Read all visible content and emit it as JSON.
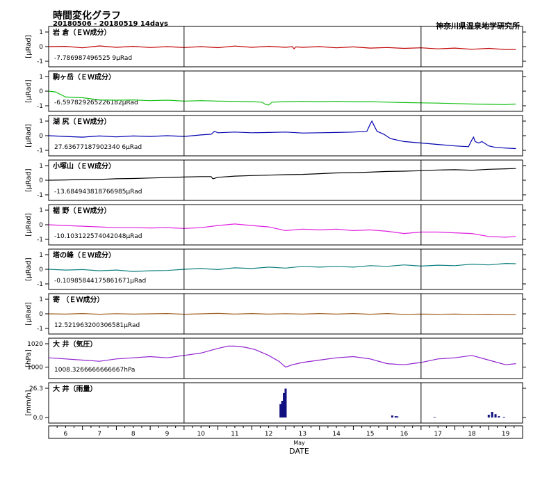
{
  "header": {
    "title": "時間変化グラフ",
    "subtitle": "20180506 - 20180519 14days",
    "organization": "神奈川県温泉地学研究所"
  },
  "chart_data": {
    "type": "line",
    "xlabel": "DATE",
    "month_label": "May",
    "x_range": [
      5.5,
      19.5
    ],
    "x_ticks": [
      "6",
      "7",
      "8",
      "9",
      "10",
      "11",
      "12",
      "13",
      "14",
      "15",
      "16",
      "17",
      "18",
      "19"
    ],
    "day_markers": [
      9.5,
      16.5
    ],
    "panels": [
      {
        "name": "岩 倉（ＥＷ成分）",
        "ylabel": "[μRad]",
        "ylim": [
          -1,
          1
        ],
        "yticks": [
          "1",
          "0",
          "-1"
        ],
        "offset_label": "-7.786987496525 9μRad",
        "color": "#c00000",
        "x": [
          5.5,
          6,
          6.5,
          7,
          7.5,
          8,
          8.5,
          9,
          9.5,
          10,
          10.5,
          11,
          11.5,
          12,
          12.5,
          12.7,
          12.75,
          12.8,
          13,
          13.5,
          14,
          14.5,
          15,
          15.5,
          16,
          16.5,
          17,
          17.5,
          18,
          18.5,
          19,
          19.3
        ],
        "values": [
          0,
          0.02,
          -0.08,
          0.05,
          -0.05,
          0.02,
          -0.06,
          0.0,
          -0.06,
          0.0,
          -0.07,
          0.04,
          -0.05,
          0.02,
          -0.05,
          0.0,
          -0.15,
          -0.02,
          -0.05,
          0.0,
          -0.08,
          -0.02,
          -0.1,
          -0.06,
          -0.12,
          -0.08,
          -0.15,
          -0.1,
          -0.18,
          -0.12,
          -0.2,
          -0.2
        ]
      },
      {
        "name": "駒ヶ岳（ＥＷ成分）",
        "ylabel": "[μRad]",
        "ylim": [
          -1,
          1
        ],
        "yticks": [
          "1",
          "0",
          "-1"
        ],
        "offset_label": "-6.597829265226182μRad",
        "color": "#10c010",
        "x": [
          5.5,
          5.7,
          6,
          6.5,
          7,
          7.5,
          8,
          8.5,
          9,
          9.5,
          10,
          10.5,
          11,
          11.5,
          11.8,
          11.9,
          12.0,
          12.1,
          12.5,
          13,
          13.5,
          14,
          14.5,
          15,
          15.5,
          16,
          16.5,
          17,
          17.5,
          18,
          18.5,
          19,
          19.3
        ],
        "values": [
          0,
          -0.05,
          -0.4,
          -0.45,
          -0.6,
          -0.62,
          -0.6,
          -0.65,
          -0.62,
          -0.68,
          -0.65,
          -0.68,
          -0.7,
          -0.72,
          -0.75,
          -0.9,
          -0.95,
          -0.75,
          -0.72,
          -0.7,
          -0.72,
          -0.7,
          -0.72,
          -0.72,
          -0.75,
          -0.78,
          -0.8,
          -0.82,
          -0.85,
          -0.88,
          -0.9,
          -0.92,
          -0.88
        ]
      },
      {
        "name": "湖 尻（ＥＷ成分）",
        "ylabel": "[μRad]",
        "ylim": [
          -1,
          1
        ],
        "yticks": [
          "1",
          "0",
          "-1"
        ],
        "offset_label": "27.63677187902340 6μRad",
        "color": "#0000b0",
        "x": [
          5.5,
          6,
          6.5,
          7,
          7.5,
          8,
          8.5,
          9,
          9.5,
          10,
          10.3,
          10.4,
          10.5,
          11,
          11.5,
          12,
          12.5,
          13,
          13.5,
          14,
          14.5,
          14.9,
          15.0,
          15.05,
          15.1,
          15.2,
          15.4,
          15.6,
          16,
          16.5,
          17,
          17.5,
          17.9,
          18.0,
          18.05,
          18.1,
          18.2,
          18.3,
          18.5,
          18.7,
          19,
          19.3
        ],
        "values": [
          0,
          -0.05,
          -0.1,
          -0.02,
          -0.08,
          -0.02,
          -0.05,
          0,
          -0.05,
          0.05,
          0.1,
          0.3,
          0.2,
          0.25,
          0.2,
          0.22,
          0.25,
          0.18,
          0.2,
          0.22,
          0.25,
          0.3,
          0.8,
          1.0,
          0.75,
          0.3,
          0.1,
          -0.2,
          -0.4,
          -0.5,
          -0.6,
          -0.7,
          -0.75,
          -0.3,
          -0.1,
          -0.4,
          -0.5,
          -0.4,
          -0.7,
          -0.8,
          -0.85,
          -0.88
        ]
      },
      {
        "name": "小塚山（ＥＷ成分）",
        "ylabel": "[μRad]",
        "ylim": [
          -1,
          1
        ],
        "yticks": [
          "1",
          "0",
          "-1"
        ],
        "offset_label": "-13.684943818766985μRad",
        "color": "#000000",
        "x": [
          5.5,
          6,
          6.5,
          7,
          7.5,
          8,
          8.5,
          9,
          9.5,
          10,
          10.3,
          10.35,
          10.5,
          11,
          11.5,
          12,
          12.5,
          13,
          13.5,
          14,
          14.5,
          15,
          15.5,
          16,
          16.5,
          17,
          17.5,
          18,
          18.5,
          19,
          19.3
        ],
        "values": [
          0,
          0.02,
          0.05,
          0.05,
          0.1,
          0.12,
          0.15,
          0.18,
          0.22,
          0.25,
          0.25,
          0.1,
          0.2,
          0.28,
          0.32,
          0.35,
          0.38,
          0.4,
          0.45,
          0.5,
          0.52,
          0.55,
          0.6,
          0.62,
          0.65,
          0.7,
          0.72,
          0.68,
          0.75,
          0.78,
          0.8
        ]
      },
      {
        "name": "裾 野（ＥＷ成分）",
        "ylabel": "[μRad]",
        "ylim": [
          -1,
          1
        ],
        "yticks": [
          "1",
          "0",
          "-1"
        ],
        "offset_label": "-10.103122574042048μRad",
        "color": "#e020e0",
        "x": [
          5.5,
          6,
          6.5,
          7,
          7.5,
          8,
          8.5,
          9,
          9.5,
          10,
          10.5,
          11,
          11.5,
          12,
          12.5,
          13,
          13.5,
          14,
          14.5,
          15,
          15.5,
          16,
          16.5,
          17,
          17.5,
          18,
          18.5,
          19,
          19.3
        ],
        "values": [
          0,
          -0.05,
          -0.1,
          -0.15,
          -0.2,
          -0.2,
          -0.22,
          -0.2,
          -0.25,
          -0.2,
          -0.05,
          0.05,
          -0.05,
          -0.15,
          -0.4,
          -0.3,
          -0.35,
          -0.3,
          -0.4,
          -0.35,
          -0.45,
          -0.6,
          -0.5,
          -0.5,
          -0.55,
          -0.6,
          -0.8,
          -0.85,
          -0.8
        ]
      },
      {
        "name": "塔の峰（ＥＷ成分）",
        "ylabel": "[μRad]",
        "ylim": [
          -1,
          1
        ],
        "yticks": [
          "1",
          "0",
          "-1"
        ],
        "offset_label": "-0.10985844175861671μRad",
        "color": "#108080",
        "x": [
          5.5,
          6,
          6.5,
          7,
          7.5,
          8,
          8.5,
          9,
          9.5,
          10,
          10.5,
          11,
          11.5,
          12,
          12.5,
          13,
          13.5,
          14,
          14.5,
          15,
          15.5,
          16,
          16.5,
          17,
          17.5,
          18,
          18.5,
          19,
          19.3
        ],
        "values": [
          0,
          -0.05,
          -0.02,
          -0.1,
          -0.05,
          -0.15,
          -0.1,
          -0.08,
          0,
          0.05,
          -0.02,
          0.1,
          0.05,
          0.15,
          0.08,
          0.2,
          0.15,
          0.2,
          0.15,
          0.25,
          0.2,
          0.3,
          0.22,
          0.28,
          0.25,
          0.35,
          0.3,
          0.4,
          0.38
        ]
      },
      {
        "name": "寄 （ＥＷ成分）",
        "ylabel": "[μRad]",
        "ylim": [
          -1,
          1
        ],
        "yticks": [
          "1",
          "0",
          "-1"
        ],
        "offset_label": "12.521963200306581μRad",
        "color": "#a06020",
        "x": [
          5.5,
          6,
          6.5,
          7,
          7.5,
          8,
          8.5,
          9,
          9.5,
          10,
          10.5,
          11,
          11.5,
          12,
          12.5,
          13,
          13.5,
          14,
          14.5,
          15,
          15.5,
          16,
          16.5,
          17,
          17.5,
          18,
          18.5,
          19,
          19.3
        ],
        "values": [
          0,
          -0.02,
          0.02,
          -0.03,
          0.01,
          -0.02,
          0,
          0.02,
          -0.03,
          0,
          0.03,
          -0.02,
          0.02,
          -0.02,
          0.01,
          -0.02,
          0.02,
          -0.02,
          0.02,
          -0.03,
          0.02,
          -0.04,
          -0.02,
          -0.03,
          -0.02,
          -0.04,
          -0.03,
          -0.05,
          -0.05
        ]
      },
      {
        "name": "大 井（気圧）",
        "ylabel": "[hPa]",
        "ylim": [
          995,
          1020
        ],
        "yticks": [
          "1020",
          "1000"
        ],
        "offset_label": "1008.3266666666667hPa",
        "color": "#9020d0",
        "x": [
          5.5,
          6,
          6.5,
          7,
          7.5,
          8,
          8.5,
          9,
          9.5,
          10,
          10.5,
          10.8,
          11,
          11.3,
          11.6,
          12,
          12.3,
          12.5,
          12.7,
          13,
          13.5,
          14,
          14.5,
          15,
          15.5,
          16,
          16.5,
          17,
          17.5,
          18,
          18.5,
          19,
          19.3
        ],
        "values": [
          1008,
          1007,
          1006,
          1005,
          1007,
          1008,
          1009,
          1008,
          1010,
          1012,
          1016,
          1018,
          1018,
          1017,
          1015,
          1010,
          1005,
          1000,
          1002,
          1004,
          1006,
          1008,
          1009,
          1007,
          1003,
          1002,
          1004,
          1007,
          1008,
          1010,
          1006,
          1002,
          1003
        ]
      },
      {
        "name": "大 井（雨量）",
        "ylabel": "[mm/h]",
        "ylim": [
          0,
          26.3
        ],
        "yticks": [
          "26.3",
          "0.0"
        ],
        "offset_label": "",
        "color": "#101080",
        "type": "bar",
        "x": [
          12.35,
          12.4,
          12.45,
          12.5,
          15.65,
          15.75,
          15.8,
          16.9,
          18.5,
          18.6,
          18.7,
          18.8,
          18.95
        ],
        "values": [
          12,
          15,
          22,
          26,
          1.8,
          1.2,
          1.0,
          0.5,
          2.5,
          5,
          3,
          1.2,
          0.6
        ]
      }
    ]
  }
}
